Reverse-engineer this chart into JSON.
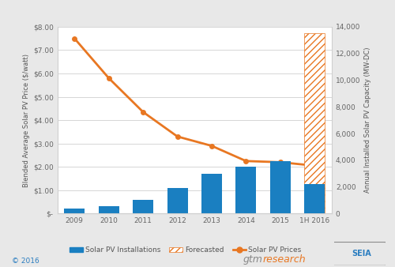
{
  "years": [
    "2009",
    "2010",
    "2011",
    "2012",
    "2013",
    "2014",
    "2015",
    "1H 2016"
  ],
  "bar_values_mw": [
    400,
    550,
    1000,
    1900,
    3000,
    3500,
    3900,
    2200
  ],
  "forecasted_bar_mw": 13500,
  "forecasted_index": 7,
  "pv_prices": [
    7.5,
    5.8,
    4.35,
    3.3,
    2.9,
    2.25,
    2.2,
    2.05
  ],
  "bar_color": "#1a7fc1",
  "forecast_hatch_color": "#e87722",
  "line_color": "#e87722",
  "bg_color": "#e8e8e8",
  "plot_bg": "#ffffff",
  "left_ylabel": "Blended Average Solar PV Price ($/watt)",
  "right_ylabel": "Annual Installed Solar PV Capacity (MW-DC)",
  "left_ylim": [
    0,
    8.0
  ],
  "right_ylim": [
    0,
    14000
  ],
  "left_yticks": [
    0,
    1.0,
    2.0,
    3.0,
    4.0,
    5.0,
    6.0,
    7.0,
    8.0
  ],
  "left_yticklabels": [
    "$-",
    "$1.00",
    "$2.00",
    "$3.00",
    "$4.00",
    "$5.00",
    "$6.00",
    "$7.00",
    "$8.00"
  ],
  "right_yticks": [
    0,
    2000,
    4000,
    6000,
    8000,
    10000,
    12000,
    14000
  ],
  "right_yticklabels": [
    "0",
    "2,000",
    "4,000",
    "6,000",
    "8,000",
    "10,000",
    "12,000",
    "14,000"
  ],
  "footer_text": "© 2016",
  "grid_color": "#d0d0d0",
  "tick_color": "#666666",
  "label_color": "#555555"
}
